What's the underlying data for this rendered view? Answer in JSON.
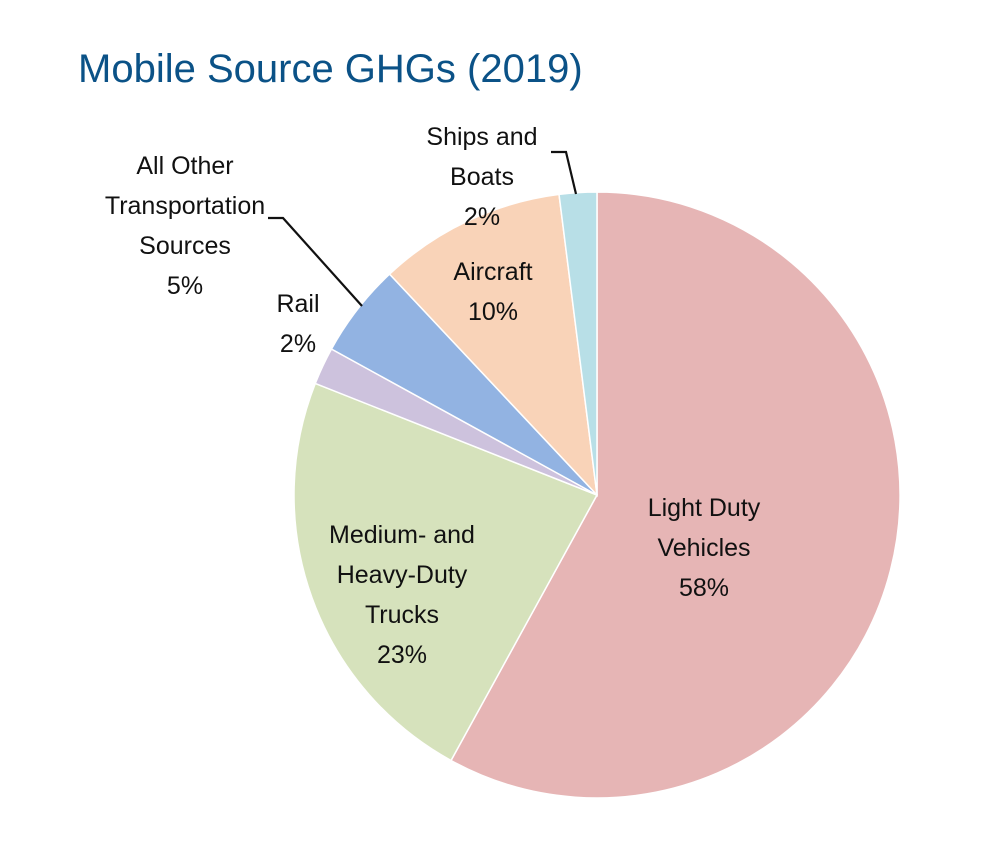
{
  "chart_data": {
    "type": "pie",
    "title": "Mobile Source GHGs (2019)",
    "start_angle_deg": 0,
    "direction": "clockwise",
    "slices": [
      {
        "name": "light-duty-vehicles",
        "lines": [
          "Light Duty",
          "Vehicles"
        ],
        "pct_label": "58%",
        "value": 58,
        "color": "#e6b5b5"
      },
      {
        "name": "medium-heavy-duty-trucks",
        "lines": [
          "Medium- and",
          "Heavy-Duty",
          "Trucks"
        ],
        "pct_label": "23%",
        "value": 23,
        "color": "#d6e2bc"
      },
      {
        "name": "rail",
        "lines": [
          "Rail"
        ],
        "pct_label": "2%",
        "value": 2,
        "color": "#cdc2dd"
      },
      {
        "name": "all-other-transportation-sources",
        "lines": [
          "All Other",
          "Transportation",
          "Sources"
        ],
        "pct_label": "5%",
        "value": 5,
        "color": "#92b3e2"
      },
      {
        "name": "aircraft",
        "lines": [
          "Aircraft"
        ],
        "pct_label": "10%",
        "value": 10,
        "color": "#f9d3b8"
      },
      {
        "name": "ships-and-boats",
        "lines": [
          "Ships and",
          "Boats"
        ],
        "pct_label": "2%",
        "value": 2,
        "color": "#b8dfe7"
      }
    ]
  }
}
